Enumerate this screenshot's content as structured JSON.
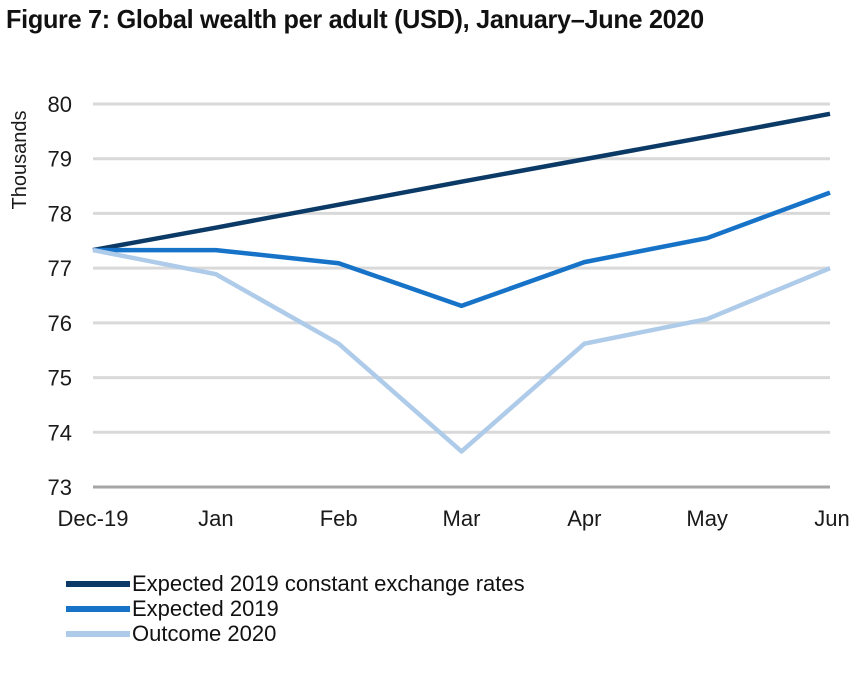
{
  "title": "Figure 7: Global wealth per adult (USD), January–June 2020",
  "chart_data": {
    "type": "line",
    "title": "Figure 7: Global wealth per adult (USD), January–June 2020",
    "xlabel": "",
    "ylabel": "Thousands",
    "categories": [
      "Dec-19",
      "Jan",
      "Feb",
      "Mar",
      "Apr",
      "May",
      "Jun"
    ],
    "ylim": [
      73,
      80
    ],
    "yticks": [
      73,
      74,
      75,
      76,
      77,
      78,
      79,
      80
    ],
    "grid": true,
    "legend_position": "bottom-left",
    "series": [
      {
        "name": "Expected 2019 constant exchange rates",
        "color": "#0b3a66",
        "values": [
          77.33,
          77.74,
          78.16,
          78.58,
          78.99,
          79.4,
          79.82
        ]
      },
      {
        "name": "Expected 2019",
        "color": "#1673c8",
        "values": [
          77.33,
          77.33,
          77.09,
          76.31,
          77.11,
          77.55,
          78.38
        ]
      },
      {
        "name": "Outcome 2020",
        "color": "#aecbea",
        "values": [
          77.33,
          76.89,
          75.62,
          73.65,
          75.62,
          76.07,
          77.0
        ]
      }
    ]
  }
}
